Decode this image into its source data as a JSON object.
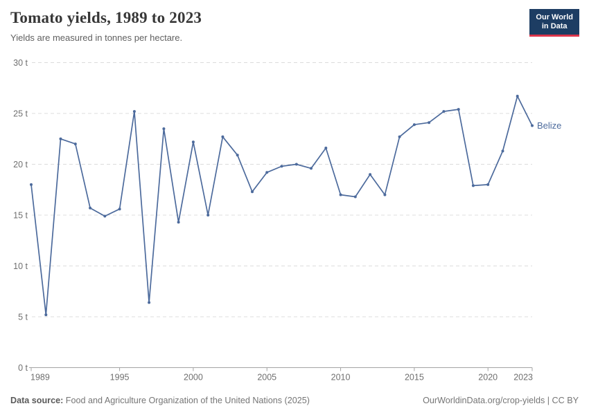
{
  "header": {
    "title": "Tomato yields, 1989 to 2023",
    "subtitle": "Yields are measured in tonnes per hectare.",
    "logo": {
      "line1": "Our World",
      "line2": "in Data",
      "bg_color": "#1d3d63",
      "accent_color": "#dc354b"
    }
  },
  "chart_data": {
    "type": "line",
    "title": "Tomato yields, 1989 to 2023",
    "subtitle": "Yields are measured in tonnes per hectare.",
    "unit": "tonnes per hectare",
    "xlabel": "",
    "ylabel": "",
    "ylim": [
      0,
      30
    ],
    "y_ticks": [
      0,
      5,
      10,
      15,
      20,
      25,
      30
    ],
    "y_tick_suffix": " t",
    "x_ticks": [
      1989,
      1995,
      2000,
      2005,
      2010,
      2015,
      2020,
      2023
    ],
    "grid": "horizontal-dashed",
    "legend_position": "end-of-line-label",
    "x": [
      1989,
      1990,
      1991,
      1992,
      1993,
      1994,
      1995,
      1996,
      1997,
      1998,
      1999,
      2000,
      2001,
      2002,
      2003,
      2004,
      2005,
      2006,
      2007,
      2008,
      2009,
      2010,
      2011,
      2012,
      2013,
      2014,
      2015,
      2016,
      2017,
      2018,
      2019,
      2020,
      2021,
      2022,
      2023
    ],
    "series": [
      {
        "name": "Belize",
        "color": "#4c6a9c",
        "values": [
          18.0,
          5.2,
          22.5,
          22.0,
          15.7,
          14.9,
          15.6,
          25.2,
          6.4,
          23.5,
          14.3,
          22.2,
          15.0,
          22.7,
          20.9,
          17.3,
          19.2,
          19.8,
          20.0,
          19.6,
          21.6,
          17.0,
          16.8,
          19.0,
          17.0,
          22.7,
          23.9,
          24.1,
          25.2,
          25.4,
          17.9,
          18.0,
          21.3,
          26.7,
          23.8
        ]
      }
    ]
  },
  "footer": {
    "source_label": "Data source:",
    "source_text": " Food and Agriculture Organization of the United Nations (2025)",
    "credit": "OurWorldinData.org/crop-yields | CC BY"
  }
}
